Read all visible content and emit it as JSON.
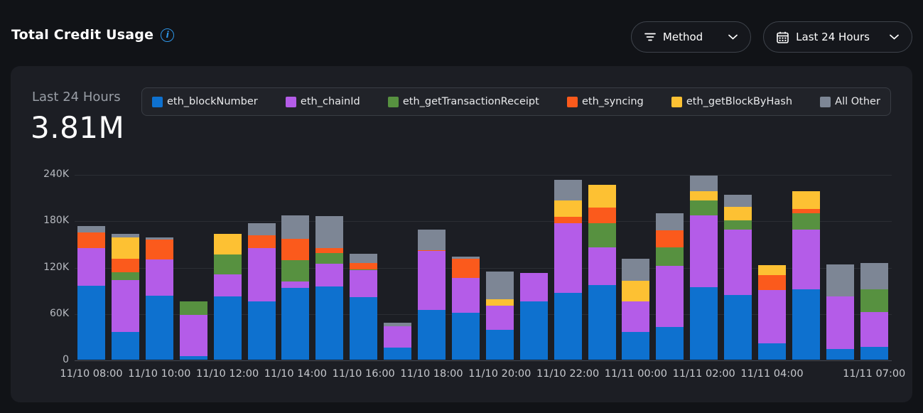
{
  "header": {
    "title": "Total Credit Usage",
    "filters": [
      {
        "icon": "filter-lines-icon",
        "label": "Method"
      },
      {
        "icon": "calendar-icon",
        "label": "Last 24 Hours"
      }
    ]
  },
  "card": {
    "period_label": "Last 24 Hours",
    "total_value": "3.81M"
  },
  "colors": {
    "background": "#111317",
    "card": "#1c1e24",
    "accent_info": "#2e96e8",
    "grid": "#2b2e34"
  },
  "chart_data": {
    "type": "bar",
    "stacked": true,
    "title": "Total Credit Usage - Last 24 Hours",
    "ylim": [
      0,
      240000
    ],
    "y_ticks": [
      "240K",
      "180K",
      "120K",
      "60K",
      "0"
    ],
    "y_tick_values": [
      240000,
      180000,
      120000,
      60000,
      0
    ],
    "grid": "horizontal",
    "legend_position": "top",
    "series": [
      {
        "name": "eth_blockNumber",
        "color": "#0e71cf"
      },
      {
        "name": "eth_chainId",
        "color": "#b45ce8"
      },
      {
        "name": "eth_getTransactionReceipt",
        "color": "#579140"
      },
      {
        "name": "eth_syncing",
        "color": "#fb5a1c"
      },
      {
        "name": "eth_getBlockByHash",
        "color": "#fdc133"
      },
      {
        "name": "All Other",
        "color": "#7d8695"
      }
    ],
    "categories": [
      "11/10 08:00",
      "11/10 09:00",
      "11/10 10:00",
      "11/10 11:00",
      "11/10 12:00",
      "11/10 13:00",
      "11/10 14:00",
      "11/10 15:00",
      "11/10 16:00",
      "11/10 17:00",
      "11/10 18:00",
      "11/10 19:00",
      "11/10 20:00",
      "11/10 21:00",
      "11/10 22:00",
      "11/10 23:00",
      "11/11 00:00",
      "11/11 01:00",
      "11/11 02:00",
      "11/11 03:00",
      "11/11 04:00",
      "11/11 05:00",
      "11/11 06:00",
      "11/11 07:00"
    ],
    "x_tick_labels": [
      {
        "bar": 0,
        "label": "11/10 08:00"
      },
      {
        "bar": 2,
        "label": "11/10 10:00"
      },
      {
        "bar": 4,
        "label": "11/10 12:00"
      },
      {
        "bar": 6,
        "label": "11/10 14:00"
      },
      {
        "bar": 8,
        "label": "11/10 16:00"
      },
      {
        "bar": 10,
        "label": "11/10 18:00"
      },
      {
        "bar": 12,
        "label": "11/10 20:00"
      },
      {
        "bar": 14,
        "label": "11/10 22:00"
      },
      {
        "bar": 16,
        "label": "11/11 00:00"
      },
      {
        "bar": 18,
        "label": "11/11 02:00"
      },
      {
        "bar": 20,
        "label": "11/11 04:00"
      },
      {
        "bar": 23,
        "label": "11/11 07:00"
      }
    ],
    "values_by_bar": [
      [
        96000,
        48000,
        0,
        21000,
        0,
        8000
      ],
      [
        36000,
        67000,
        10000,
        18000,
        27000,
        5000
      ],
      [
        83000,
        47000,
        0,
        25000,
        0,
        3000
      ],
      [
        5000,
        53000,
        17000,
        0,
        0,
        0
      ],
      [
        82000,
        28000,
        26000,
        0,
        27000,
        0
      ],
      [
        75000,
        69000,
        0,
        17000,
        0,
        16000
      ],
      [
        93000,
        8000,
        28000,
        27000,
        0,
        31000
      ],
      [
        95000,
        29000,
        14000,
        6000,
        0,
        42000
      ],
      [
        81000,
        35000,
        1000,
        8000,
        0,
        12000
      ],
      [
        16000,
        27000,
        0,
        0,
        0,
        5000
      ],
      [
        64000,
        77000,
        0,
        1000,
        0,
        26000
      ],
      [
        61000,
        45000,
        0,
        25000,
        0,
        2000
      ],
      [
        39000,
        31000,
        0,
        0,
        8000,
        36000
      ],
      [
        75000,
        37000,
        0,
        0,
        0,
        0
      ],
      [
        86000,
        91000,
        0,
        8000,
        21000,
        27000
      ],
      [
        97000,
        48000,
        32000,
        20000,
        29000,
        0
      ],
      [
        36000,
        39000,
        0,
        0,
        27000,
        29000
      ],
      [
        42000,
        79000,
        24000,
        22000,
        0,
        22000
      ],
      [
        94000,
        93000,
        19000,
        0,
        12000,
        20000
      ],
      [
        84000,
        84000,
        12000,
        0,
        18000,
        15000
      ],
      [
        21000,
        69000,
        0,
        19000,
        13000,
        0
      ],
      [
        91000,
        77000,
        21000,
        6000,
        23000,
        0
      ],
      [
        14000,
        68000,
        0,
        0,
        0,
        41000
      ],
      [
        17000,
        45000,
        29000,
        0,
        0,
        34000
      ]
    ]
  }
}
